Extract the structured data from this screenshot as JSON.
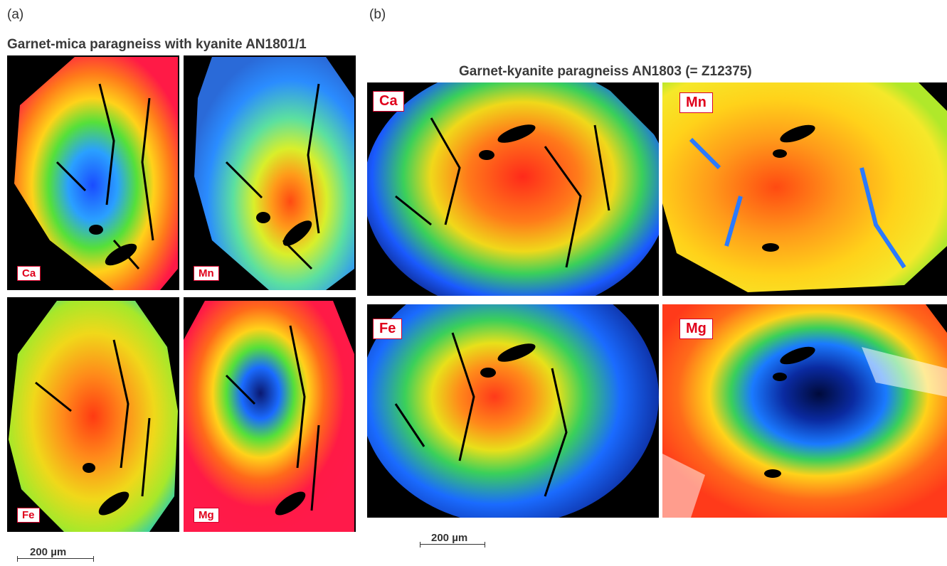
{
  "panel_a": {
    "letter": "(a)",
    "title": "Garnet-mica paragneiss with kyanite AN1801/1",
    "labels": {
      "ca": "Ca",
      "mn": "Mn",
      "fe": "Fe",
      "mg": "Mg"
    },
    "scale": "200 µm"
  },
  "panel_b": {
    "letter": "(b)",
    "title": "Garnet-kyanite paragneiss AN1803 (= Z12375)",
    "labels": {
      "ca": "Ca",
      "mn": "Mn",
      "fe": "Fe",
      "mg": "Mg"
    },
    "scale": "200 µm"
  },
  "colors": {
    "label_text": "#e0001b",
    "map_background": "#000000",
    "high": "#ff1a3c",
    "mid_high": "#ff8a1a",
    "mid": "#f2e51a",
    "mid_low": "#55e03a",
    "low": "#1a6bff",
    "very_low": "#06104a"
  }
}
